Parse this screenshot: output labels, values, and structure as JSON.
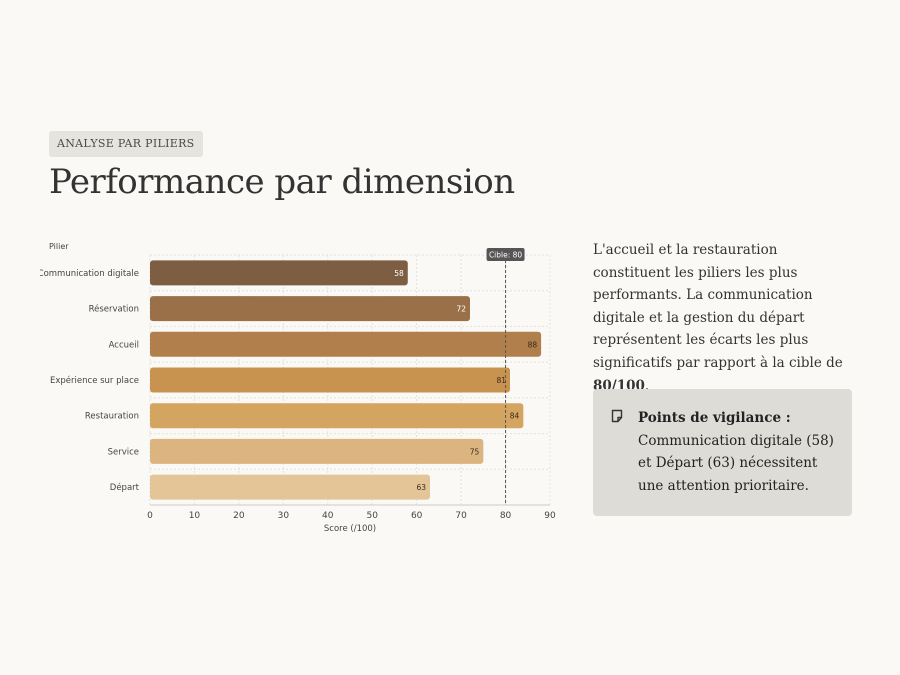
{
  "header": {
    "tag": "ANALYSE PAR PILIERS",
    "title": "Performance par dimension"
  },
  "chart_data": {
    "type": "bar",
    "orientation": "horizontal",
    "y_axis_title": "Pilier",
    "xlabel": "Score (/100)",
    "xlim": [
      0,
      90
    ],
    "xticks": [
      0,
      10,
      20,
      30,
      40,
      50,
      60,
      70,
      80,
      90
    ],
    "grid": true,
    "categories": [
      "Communication digitale",
      "Réservation",
      "Accueil",
      "Expérience sur place",
      "Restauration",
      "Service",
      "Départ"
    ],
    "values": [
      58,
      72,
      88,
      81,
      84,
      75,
      63
    ],
    "bar_colors": [
      "#7d5e43",
      "#9a7049",
      "#b07f4c",
      "#c8934f",
      "#d4a461",
      "#dcb47f",
      "#e3c598"
    ],
    "value_label_colors": [
      "#ffffff",
      "#ffffff",
      "#3a2a1a",
      "#3a2a1a",
      "#3a2a1a",
      "#3a2a1a",
      "#3a2a1a"
    ],
    "target": {
      "value": 80,
      "label": "Cible: 80"
    }
  },
  "description": {
    "text_before": "L'accueil et la restauration constituent les piliers les plus performants. La communication digitale et la gestion du départ représentent les écarts les plus significatifs par rapport à la cible de ",
    "text_bold": "80/100",
    "text_after": "."
  },
  "callout": {
    "icon": "note-icon",
    "title": "Points de vigilance :",
    "text": " Communication digitale (58) et Départ (63) nécessitent une attention prioritaire."
  }
}
